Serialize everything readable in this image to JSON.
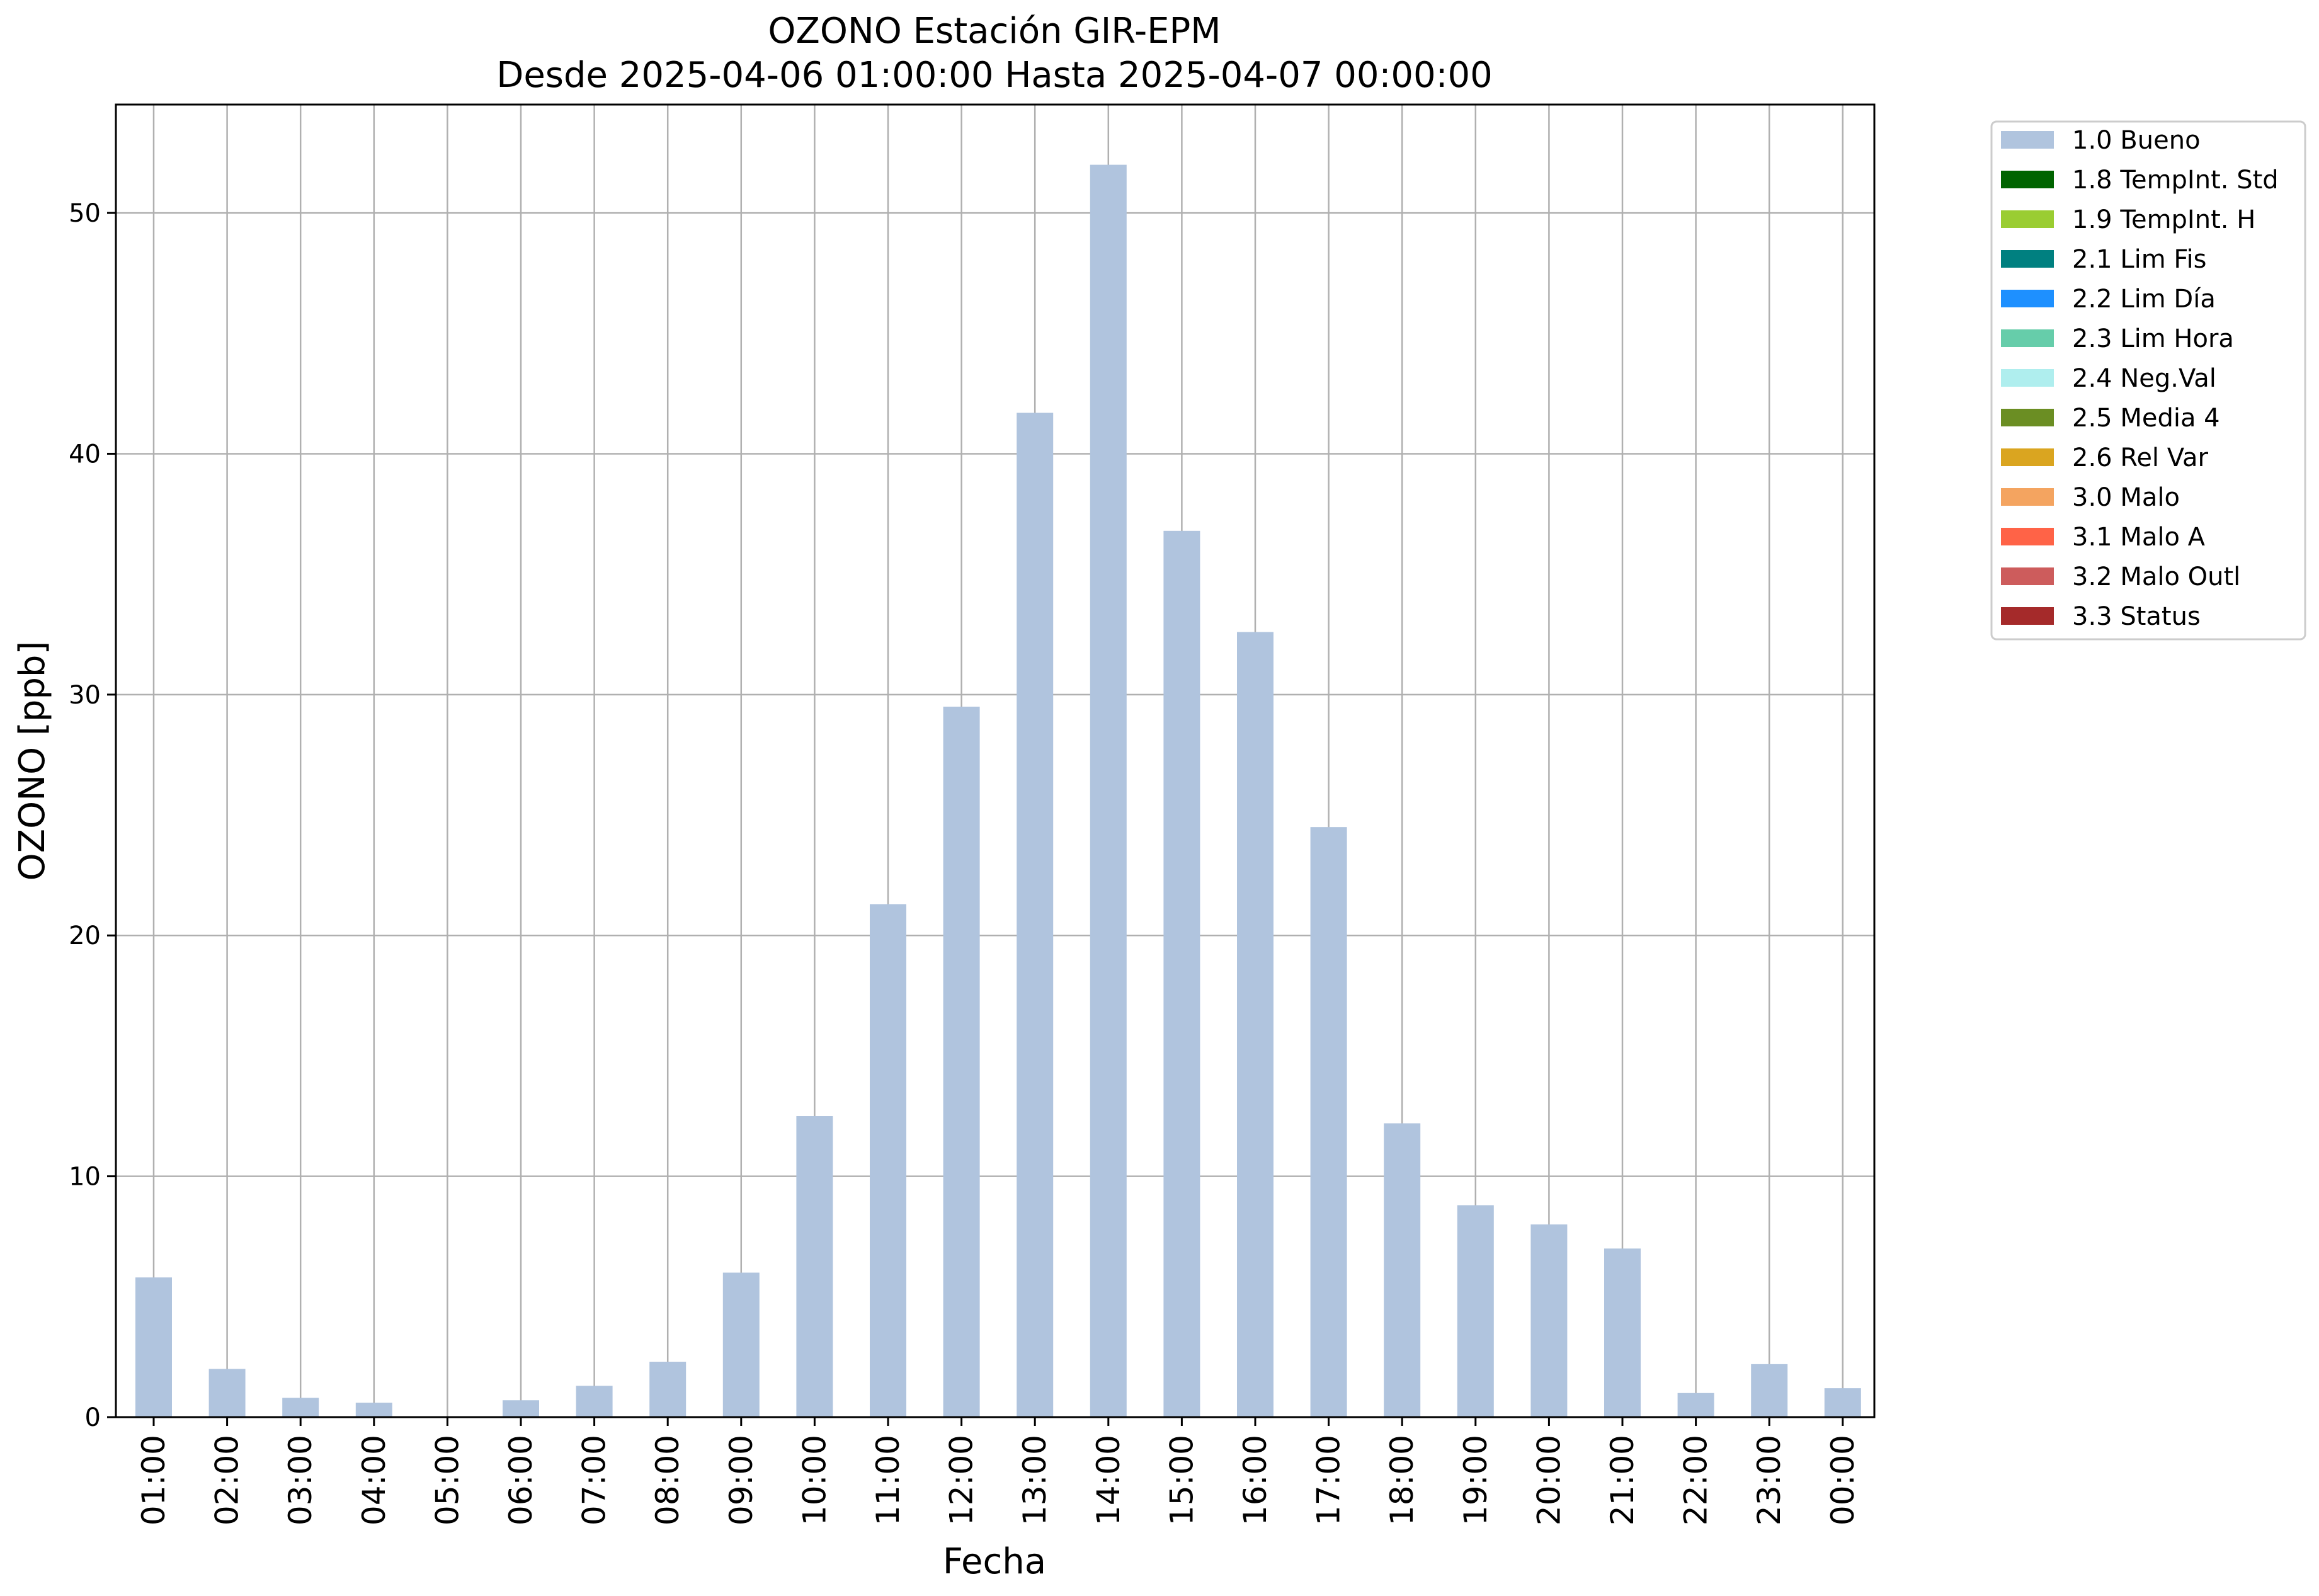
{
  "chart_data": {
    "type": "bar",
    "title": "OZONO Estación GIR-EPM",
    "subtitle": "Desde 2025-04-06 01:00:00 Hasta 2025-04-07 00:00:00",
    "xlabel": "Fecha",
    "ylabel": "OZONO [ppb]",
    "ylim": [
      0,
      54.5
    ],
    "yticks": [
      0,
      10,
      20,
      30,
      40,
      50
    ],
    "grid": true,
    "legend_position": "outside top-right",
    "categories": [
      "01:00",
      "02:00",
      "03:00",
      "04:00",
      "05:00",
      "06:00",
      "07:00",
      "08:00",
      "09:00",
      "10:00",
      "11:00",
      "12:00",
      "13:00",
      "14:00",
      "15:00",
      "16:00",
      "17:00",
      "18:00",
      "19:00",
      "20:00",
      "21:00",
      "22:00",
      "23:00",
      "00:00"
    ],
    "series": [
      {
        "name": "1.0 Bueno",
        "color": "#b0c4de",
        "values": [
          5.8,
          2.0,
          0.8,
          0.6,
          0,
          0.7,
          1.3,
          2.3,
          6.0,
          12.5,
          21.3,
          29.5,
          41.7,
          52.0,
          36.8,
          32.6,
          24.5,
          12.2,
          8.8,
          8.0,
          7.0,
          1.0,
          2.2,
          1.2
        ]
      }
    ],
    "legend": [
      {
        "label": "1.0 Bueno",
        "color": "#b0c4de"
      },
      {
        "label": "1.8 TempInt. Std",
        "color": "#006400"
      },
      {
        "label": "1.9 TempInt. H",
        "color": "#9acd32"
      },
      {
        "label": "2.1 Lim Fis",
        "color": "#008080"
      },
      {
        "label": "2.2 Lim Día",
        "color": "#1e90ff"
      },
      {
        "label": "2.3 Lim Hora",
        "color": "#66cdaa"
      },
      {
        "label": "2.4 Neg.Val",
        "color": "#afeeee"
      },
      {
        "label": "2.5 Media 4",
        "color": "#6b8e23"
      },
      {
        "label": "2.6 Rel Var",
        "color": "#daa520"
      },
      {
        "label": "3.0 Malo",
        "color": "#f4a460"
      },
      {
        "label": "3.1 Malo A",
        "color": "#ff6347"
      },
      {
        "label": "3.2 Malo Outl",
        "color": "#cd5c5c"
      },
      {
        "label": "3.3 Status",
        "color": "#a52a2a"
      }
    ]
  }
}
